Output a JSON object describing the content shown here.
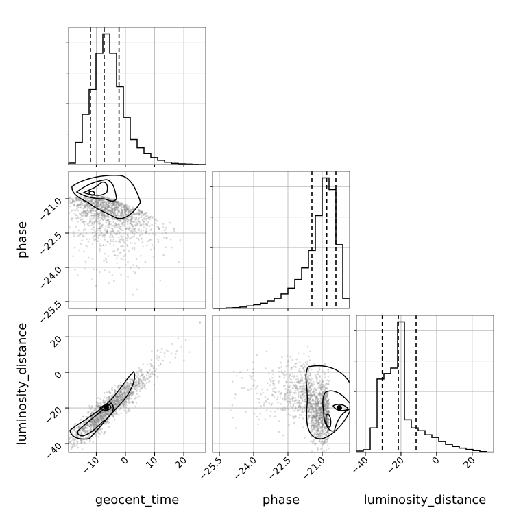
{
  "chart_data": {
    "type": "corner",
    "parameters": [
      "geocent_time",
      "phase",
      "luminosity_distance"
    ],
    "xlabels": [
      "geocent_time",
      "phase",
      "luminosity_distance"
    ],
    "ylabels": [
      "",
      "phase",
      "luminosity_distance"
    ],
    "ranges": {
      "geocent_time": [
        -19.5,
        27.5
      ],
      "phase": [
        -25.8,
        -19.8
      ],
      "luminosity_distance": [
        -45,
        32
      ]
    },
    "ticks": {
      "geocent_time": [
        -10,
        0,
        10,
        20
      ],
      "phase": [
        -25.5,
        -24.0,
        -22.5,
        -21.0
      ],
      "luminosity_distance": [
        -40,
        -20,
        0,
        20
      ]
    },
    "tick_labels": {
      "geocent_time": [
        "−10",
        "0",
        "10",
        "20"
      ],
      "phase": [
        "−25.5",
        "−24.0",
        "−22.5",
        "−21.0"
      ],
      "luminosity_distance": [
        "−40",
        "−20",
        "0",
        "20"
      ]
    },
    "quantiles": {
      "geocent_time": [
        -12.0,
        -7.3,
        -2.2
      ],
      "phase": [
        -21.45,
        -20.8,
        -20.4
      ],
      "luminosity_distance": [
        -30.5,
        -21.5,
        -11.5
      ]
    },
    "histograms": {
      "geocent_time": {
        "edges": [
          -19.5,
          -17.15,
          -14.8,
          -12.45,
          -10.1,
          -7.75,
          -5.4,
          -3.05,
          -0.7,
          1.65,
          4.0,
          6.35,
          8.7,
          11.05,
          13.4,
          15.75,
          18.1,
          20.45,
          22.8,
          25.15,
          27.5
        ],
        "counts": [
          0.5,
          8,
          18,
          27,
          40,
          47,
          40,
          28,
          17,
          9,
          6,
          4,
          2.5,
          1.5,
          0.8,
          0.4,
          0.25,
          0.15,
          0.05,
          0.02
        ]
      },
      "phase": {
        "edges": [
          -25.8,
          -25.5,
          -25.2,
          -24.9,
          -24.6,
          -24.3,
          -24.0,
          -23.7,
          -23.4,
          -23.1,
          -22.8,
          -22.5,
          -22.2,
          -21.9,
          -21.6,
          -21.3,
          -21.0,
          -20.7,
          -20.4,
          -20.1,
          -19.8
        ],
        "counts": [
          0,
          0,
          0.2,
          0.3,
          0.5,
          0.9,
          1.3,
          1.8,
          2.6,
          3.5,
          5,
          7,
          10,
          14,
          20,
          32,
          45,
          41,
          22,
          3.5
        ]
      },
      "luminosity_distance": {
        "edges": [
          -45,
          -41.15,
          -37.3,
          -33.45,
          -29.6,
          -25.75,
          -21.9,
          -18.05,
          -14.2,
          -10.35,
          -6.5,
          -2.65,
          1.2,
          5.05,
          8.9,
          12.75,
          16.6,
          20.45,
          24.3,
          28.15,
          32
        ],
        "counts": [
          0.5,
          1,
          9,
          27,
          29,
          31,
          48,
          12,
          9,
          8,
          6.5,
          5.5,
          4,
          3,
          2.2,
          1.6,
          1.1,
          0.7,
          0.3,
          0.1
        ]
      }
    },
    "grid": true,
    "point_color": "#7a7a7a",
    "line_color": "#000000"
  }
}
